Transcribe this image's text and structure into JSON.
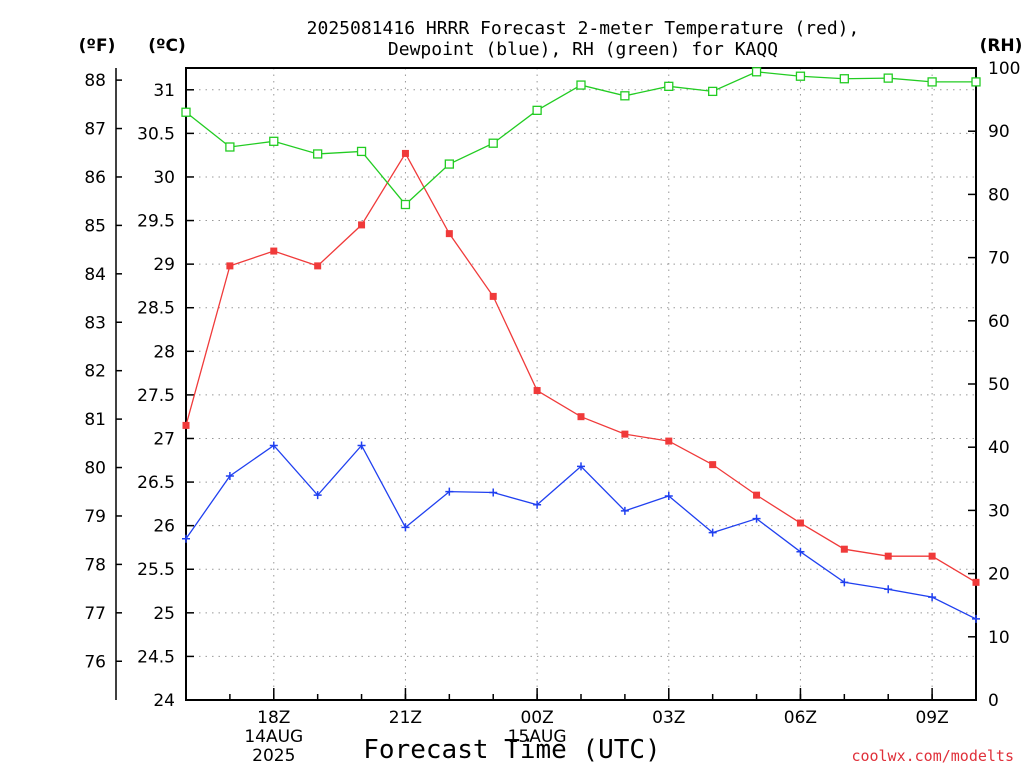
{
  "title_line1": "2025081416 HRRR Forecast 2-meter Temperature (red),",
  "title_line2": "Dewpoint (blue), RH (green) for KAQQ",
  "unit_f": "(ºF)",
  "unit_c": "(ºC)",
  "unit_rh": "(RH)",
  "xlabel": "Forecast Time (UTC)",
  "credit": "coolwx.com/modelts",
  "chart_data": {
    "type": "line",
    "title": "2025081416 HRRR Forecast 2-meter Temperature (red), Dewpoint (blue), RH (green) for KAQQ",
    "xlabel": "Forecast Time (UTC)",
    "x_hours_utc": [
      "16Z",
      "17Z",
      "18Z",
      "19Z",
      "20Z",
      "21Z",
      "22Z",
      "23Z",
      "00Z",
      "01Z",
      "02Z",
      "03Z",
      "04Z",
      "05Z",
      "06Z",
      "07Z",
      "08Z",
      "09Z",
      "10Z"
    ],
    "x_ticks": [
      {
        "label": "18Z",
        "sub": [
          "14AUG",
          "2025"
        ],
        "index": 2
      },
      {
        "label": "21Z",
        "sub": [],
        "index": 5
      },
      {
        "label": "00Z",
        "sub": [
          "15AUG"
        ],
        "index": 8
      },
      {
        "label": "03Z",
        "sub": [],
        "index": 11
      },
      {
        "label": "06Z",
        "sub": [],
        "index": 14
      },
      {
        "label": "09Z",
        "sub": [],
        "index": 17
      }
    ],
    "left_axis_c": {
      "range": [
        24,
        31.25
      ],
      "ticks": [
        24,
        24.5,
        25,
        25.5,
        26,
        26.5,
        27,
        27.5,
        28,
        28.5,
        29,
        29.5,
        30,
        30.5,
        31
      ]
    },
    "left_axis_f_ticks": [
      76,
      77,
      78,
      79,
      80,
      81,
      82,
      83,
      84,
      85,
      86,
      87,
      88
    ],
    "right_axis_rh": {
      "range": [
        0,
        100
      ],
      "ticks": [
        0,
        10,
        20,
        30,
        40,
        50,
        60,
        70,
        80,
        90,
        100
      ]
    },
    "grid": true,
    "series": [
      {
        "name": "Temperature",
        "color": "#f03a3a",
        "marker": "filled-square",
        "axis": "C",
        "values": [
          27.15,
          28.98,
          29.15,
          28.98,
          29.45,
          30.27,
          29.35,
          28.63,
          27.55,
          27.25,
          27.05,
          26.97,
          26.7,
          26.35,
          26.03,
          25.73,
          25.65,
          25.65,
          25.35
        ]
      },
      {
        "name": "Dewpoint",
        "color": "#2040f0",
        "marker": "plus",
        "axis": "C",
        "values": [
          25.85,
          26.57,
          26.92,
          26.35,
          26.92,
          25.98,
          26.39,
          26.38,
          26.24,
          26.68,
          26.17,
          26.34,
          25.92,
          26.08,
          25.7,
          25.35,
          25.27,
          25.18,
          24.93
        ]
      },
      {
        "name": "RH",
        "color": "#22cc22",
        "marker": "open-square",
        "axis": "RH",
        "values": [
          93,
          87.5,
          88.4,
          86.4,
          86.8,
          78.4,
          84.8,
          88.1,
          93.3,
          97.3,
          95.6,
          97.1,
          96.3,
          99.4,
          98.7,
          98.3,
          98.4,
          97.8,
          97.8
        ]
      }
    ]
  }
}
